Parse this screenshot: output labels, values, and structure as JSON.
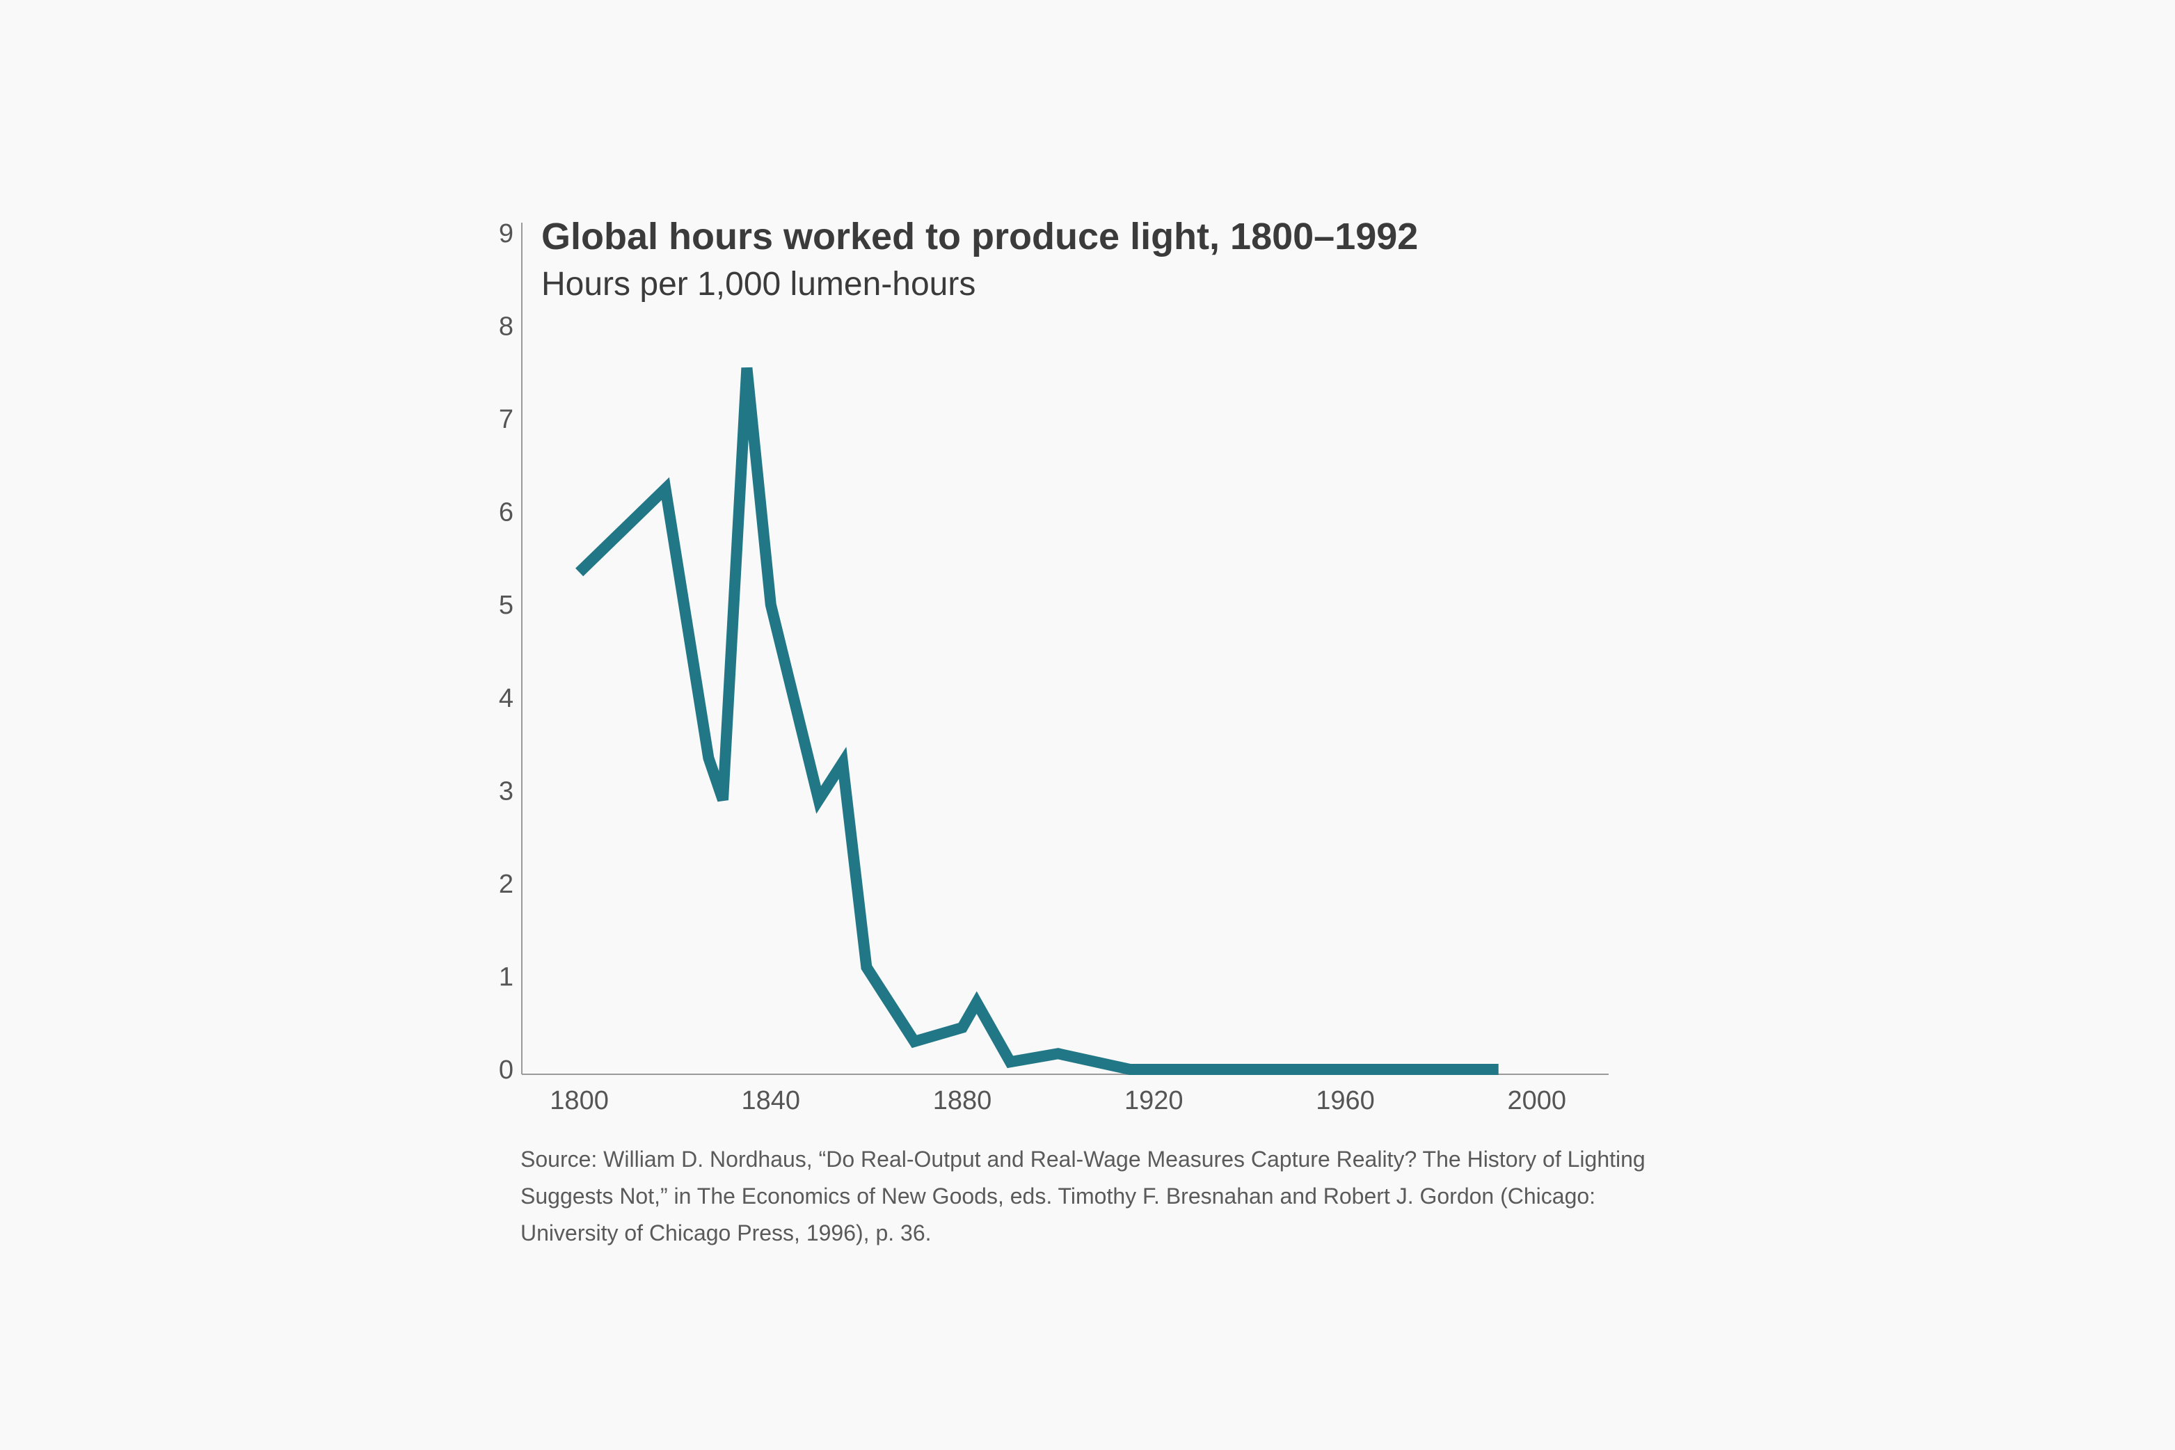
{
  "chart_data": {
    "type": "line",
    "title": "Global hours worked to produce light, 1800–1992",
    "subtitle": "Hours per 1,000 lumen-hours",
    "xlabel": "",
    "ylabel": "",
    "xlim": [
      1788,
      2015
    ],
    "ylim": [
      0,
      9
    ],
    "x_ticks": [
      1800,
      1840,
      1880,
      1920,
      1960,
      2000
    ],
    "y_ticks": [
      0,
      1,
      2,
      3,
      4,
      5,
      6,
      7,
      8,
      9
    ],
    "x_tick_labels": [
      "1800",
      "1840",
      "1880",
      "1920",
      "1960",
      "2000"
    ],
    "y_tick_labels": [
      "0",
      "1",
      "2",
      "3",
      "4",
      "5",
      "6",
      "7",
      "8",
      "9"
    ],
    "grid": false,
    "legend": "none",
    "color": "#217785",
    "series": [
      {
        "name": "Hours per 1,000 lumen-hours",
        "x": [
          1800,
          1818,
          1827,
          1830,
          1835,
          1840,
          1850,
          1855,
          1860,
          1870,
          1880,
          1883,
          1890,
          1900,
          1915,
          1992
        ],
        "values": [
          5.35,
          6.25,
          3.35,
          2.9,
          7.55,
          5.0,
          2.9,
          3.3,
          1.1,
          0.3,
          0.45,
          0.72,
          0.08,
          0.17,
          0.0,
          0.0
        ]
      }
    ]
  },
  "source_note": "Source: William D. Nordhaus, “Do Real-Output and Real-Wage Measures Capture Reality? The History of Lighting Suggests Not,” in The Economics of New Goods, eds. Timothy F. Bresnahan and Robert J. Gordon (Chicago: University of Chicago Press, 1996), p. 36."
}
